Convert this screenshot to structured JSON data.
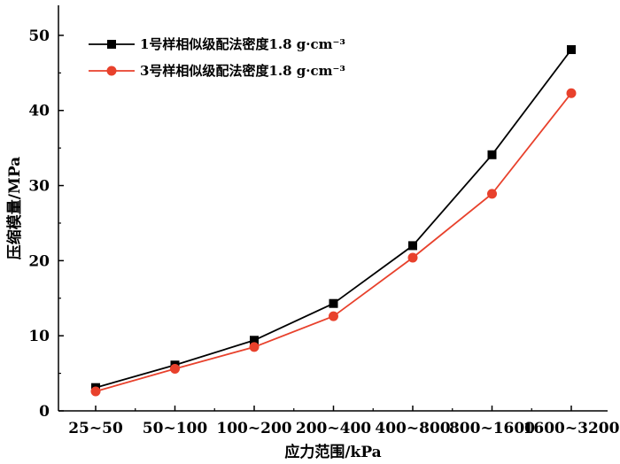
{
  "chart_data": {
    "type": "line",
    "title": "",
    "xlabel": "应力范围/kPa",
    "ylabel": "压缩模量/MPa",
    "categories": [
      "25~50",
      "50~100",
      "100~200",
      "200~400",
      "400~800",
      "800~1600",
      "1600~3200"
    ],
    "ylim": [
      0,
      54
    ],
    "yticks": [
      0,
      10,
      20,
      30,
      40,
      50
    ],
    "grid": false,
    "legend_position": "top-left",
    "series": [
      {
        "name": "1号样相似级配法密度1.8 g·cm⁻³",
        "color": "#000000",
        "marker": "square",
        "values": [
          3.1,
          6.1,
          9.4,
          14.3,
          22.0,
          34.1,
          48.1
        ]
      },
      {
        "name": "3号样相似级配法密度1.8 g·cm⁻³",
        "color": "#e8412c",
        "marker": "circle",
        "values": [
          2.6,
          5.6,
          8.5,
          12.6,
          20.4,
          28.9,
          42.3
        ]
      }
    ]
  }
}
